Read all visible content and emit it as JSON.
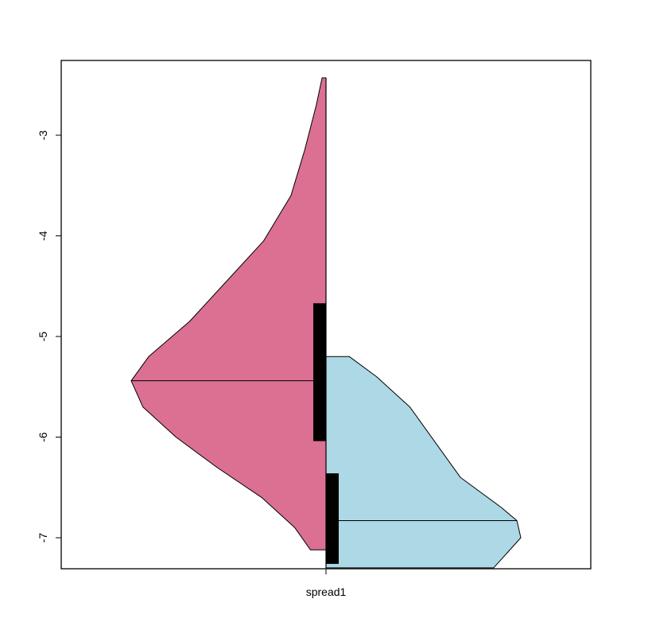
{
  "chart_data": {
    "type": "split-violin",
    "title": "",
    "xlabel": "",
    "ylabel": "",
    "categories": [
      "spread1"
    ],
    "ylim": [
      -7.3,
      -2.5
    ],
    "yticks": [
      -3,
      -4,
      -5,
      -6,
      -7
    ],
    "grid": false,
    "legend": "none",
    "series": [
      {
        "side": "left",
        "color": "#DB7093",
        "median": -5.44,
        "iqr": [
          -6.04,
          -4.67
        ],
        "range": [
          -7.12,
          -2.43
        ],
        "density": [
          [
            -7.12,
            0.0
          ],
          [
            -7.12,
            0.08
          ],
          [
            -6.9,
            0.16
          ],
          [
            -6.6,
            0.33
          ],
          [
            -6.3,
            0.56
          ],
          [
            -6.0,
            0.77
          ],
          [
            -5.7,
            0.94
          ],
          [
            -5.44,
            1.0
          ],
          [
            -5.2,
            0.91
          ],
          [
            -4.85,
            0.7
          ],
          [
            -4.45,
            0.51
          ],
          [
            -4.05,
            0.32
          ],
          [
            -3.6,
            0.18
          ],
          [
            -3.15,
            0.11
          ],
          [
            -2.7,
            0.05
          ],
          [
            -2.43,
            0.02
          ],
          [
            -2.43,
            0.0
          ]
        ]
      },
      {
        "side": "right",
        "color": "#ADD8E6",
        "median": -6.83,
        "iqr": [
          -7.26,
          -6.36
        ],
        "range": [
          -7.3,
          -5.2
        ],
        "density": [
          [
            -5.2,
            0.0
          ],
          [
            -5.2,
            0.12
          ],
          [
            -5.4,
            0.26
          ],
          [
            -5.7,
            0.43
          ],
          [
            -6.05,
            0.56
          ],
          [
            -6.4,
            0.69
          ],
          [
            -6.7,
            0.9
          ],
          [
            -6.83,
            0.98
          ],
          [
            -7.0,
            1.0
          ],
          [
            -7.15,
            0.93
          ],
          [
            -7.3,
            0.86
          ],
          [
            -7.3,
            0.0
          ]
        ]
      }
    ]
  }
}
